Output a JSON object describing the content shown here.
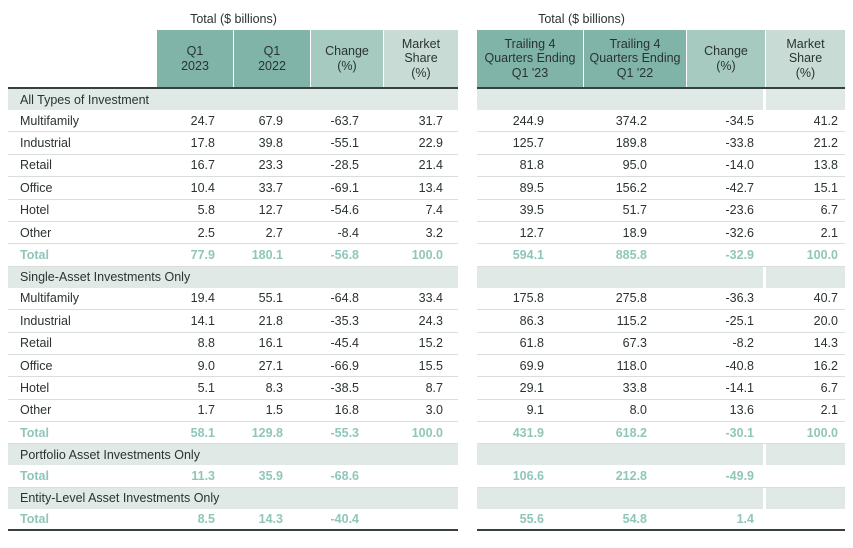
{
  "titles": {
    "left": "Total ($ billions)",
    "right": "Total ($ billions)"
  },
  "headers": {
    "left": [
      {
        "lines": [
          "Q1",
          "2023"
        ],
        "shade": "dark"
      },
      {
        "lines": [
          "Q1",
          "2022"
        ],
        "shade": "dark"
      },
      {
        "lines": [
          "Change",
          "(%)"
        ],
        "shade": "mid"
      },
      {
        "lines": [
          "Market",
          "Share",
          "(%)"
        ],
        "shade": "light"
      }
    ],
    "right": [
      {
        "lines": [
          "Trailing 4",
          "Quarters Ending",
          "Q1 '23"
        ],
        "shade": "dark"
      },
      {
        "lines": [
          "Trailing 4",
          "Quarters Ending",
          "Q1 '22"
        ],
        "shade": "dark"
      },
      {
        "lines": [
          "Change",
          "(%)"
        ],
        "shade": "mid"
      },
      {
        "lines": [
          "Market",
          "Share",
          "(%)"
        ],
        "shade": "light"
      }
    ]
  },
  "sections": [
    {
      "title": "All Types of Investment",
      "rows": [
        {
          "label": "Multifamily",
          "is_total": false,
          "left": [
            "24.7",
            "67.9",
            "-63.7",
            "31.7"
          ],
          "right": [
            "244.9",
            "374.2",
            "-34.5",
            "41.2"
          ]
        },
        {
          "label": "Industrial",
          "is_total": false,
          "left": [
            "17.8",
            "39.8",
            "-55.1",
            "22.9"
          ],
          "right": [
            "125.7",
            "189.8",
            "-33.8",
            "21.2"
          ]
        },
        {
          "label": "Retail",
          "is_total": false,
          "left": [
            "16.7",
            "23.3",
            "-28.5",
            "21.4"
          ],
          "right": [
            "81.8",
            "95.0",
            "-14.0",
            "13.8"
          ]
        },
        {
          "label": "Office",
          "is_total": false,
          "left": [
            "10.4",
            "33.7",
            "-69.1",
            "13.4"
          ],
          "right": [
            "89.5",
            "156.2",
            "-42.7",
            "15.1"
          ]
        },
        {
          "label": "Hotel",
          "is_total": false,
          "left": [
            "5.8",
            "12.7",
            "-54.6",
            "7.4"
          ],
          "right": [
            "39.5",
            "51.7",
            "-23.6",
            "6.7"
          ]
        },
        {
          "label": "Other",
          "is_total": false,
          "left": [
            "2.5",
            "2.7",
            "-8.4",
            "3.2"
          ],
          "right": [
            "12.7",
            "18.9",
            "-32.6",
            "2.1"
          ]
        },
        {
          "label": "Total",
          "is_total": true,
          "left": [
            "77.9",
            "180.1",
            "-56.8",
            "100.0"
          ],
          "right": [
            "594.1",
            "885.8",
            "-32.9",
            "100.0"
          ]
        }
      ]
    },
    {
      "title": "Single-Asset Investments Only",
      "rows": [
        {
          "label": "Multifamily",
          "is_total": false,
          "left": [
            "19.4",
            "55.1",
            "-64.8",
            "33.4"
          ],
          "right": [
            "175.8",
            "275.8",
            "-36.3",
            "40.7"
          ]
        },
        {
          "label": "Industrial",
          "is_total": false,
          "left": [
            "14.1",
            "21.8",
            "-35.3",
            "24.3"
          ],
          "right": [
            "86.3",
            "115.2",
            "-25.1",
            "20.0"
          ]
        },
        {
          "label": "Retail",
          "is_total": false,
          "left": [
            "8.8",
            "16.1",
            "-45.4",
            "15.2"
          ],
          "right": [
            "61.8",
            "67.3",
            "-8.2",
            "14.3"
          ]
        },
        {
          "label": "Office",
          "is_total": false,
          "left": [
            "9.0",
            "27.1",
            "-66.9",
            "15.5"
          ],
          "right": [
            "69.9",
            "118.0",
            "-40.8",
            "16.2"
          ]
        },
        {
          "label": "Hotel",
          "is_total": false,
          "left": [
            "5.1",
            "8.3",
            "-38.5",
            "8.7"
          ],
          "right": [
            "29.1",
            "33.8",
            "-14.1",
            "6.7"
          ]
        },
        {
          "label": "Other",
          "is_total": false,
          "left": [
            "1.7",
            "1.5",
            "16.8",
            "3.0"
          ],
          "right": [
            "9.1",
            "8.0",
            "13.6",
            "2.1"
          ]
        },
        {
          "label": "Total",
          "is_total": true,
          "left": [
            "58.1",
            "129.8",
            "-55.3",
            "100.0"
          ],
          "right": [
            "431.9",
            "618.2",
            "-30.1",
            "100.0"
          ]
        }
      ]
    },
    {
      "title": "Portfolio Asset Investments Only",
      "rows": [
        {
          "label": "Total",
          "is_total": true,
          "left": [
            "11.3",
            "35.9",
            "-68.6",
            ""
          ],
          "right": [
            "106.6",
            "212.8",
            "-49.9",
            ""
          ]
        }
      ]
    },
    {
      "title": "Entity-Level Asset Investments Only",
      "rows": [
        {
          "label": "Total",
          "is_total": true,
          "left": [
            "8.5",
            "14.3",
            "-40.4",
            ""
          ],
          "right": [
            "55.6",
            "54.8",
            "1.4",
            ""
          ]
        }
      ]
    }
  ],
  "colors": {
    "header_dark": "#80b4a8",
    "header_mid": "#a6cabf",
    "header_light": "#c8dcd5",
    "band_bg": "#e0e9e5",
    "total_text": "#90c6b9",
    "body_text": "#2a3331",
    "row_line": "#d9dedb",
    "strong_line": "#373f41"
  }
}
